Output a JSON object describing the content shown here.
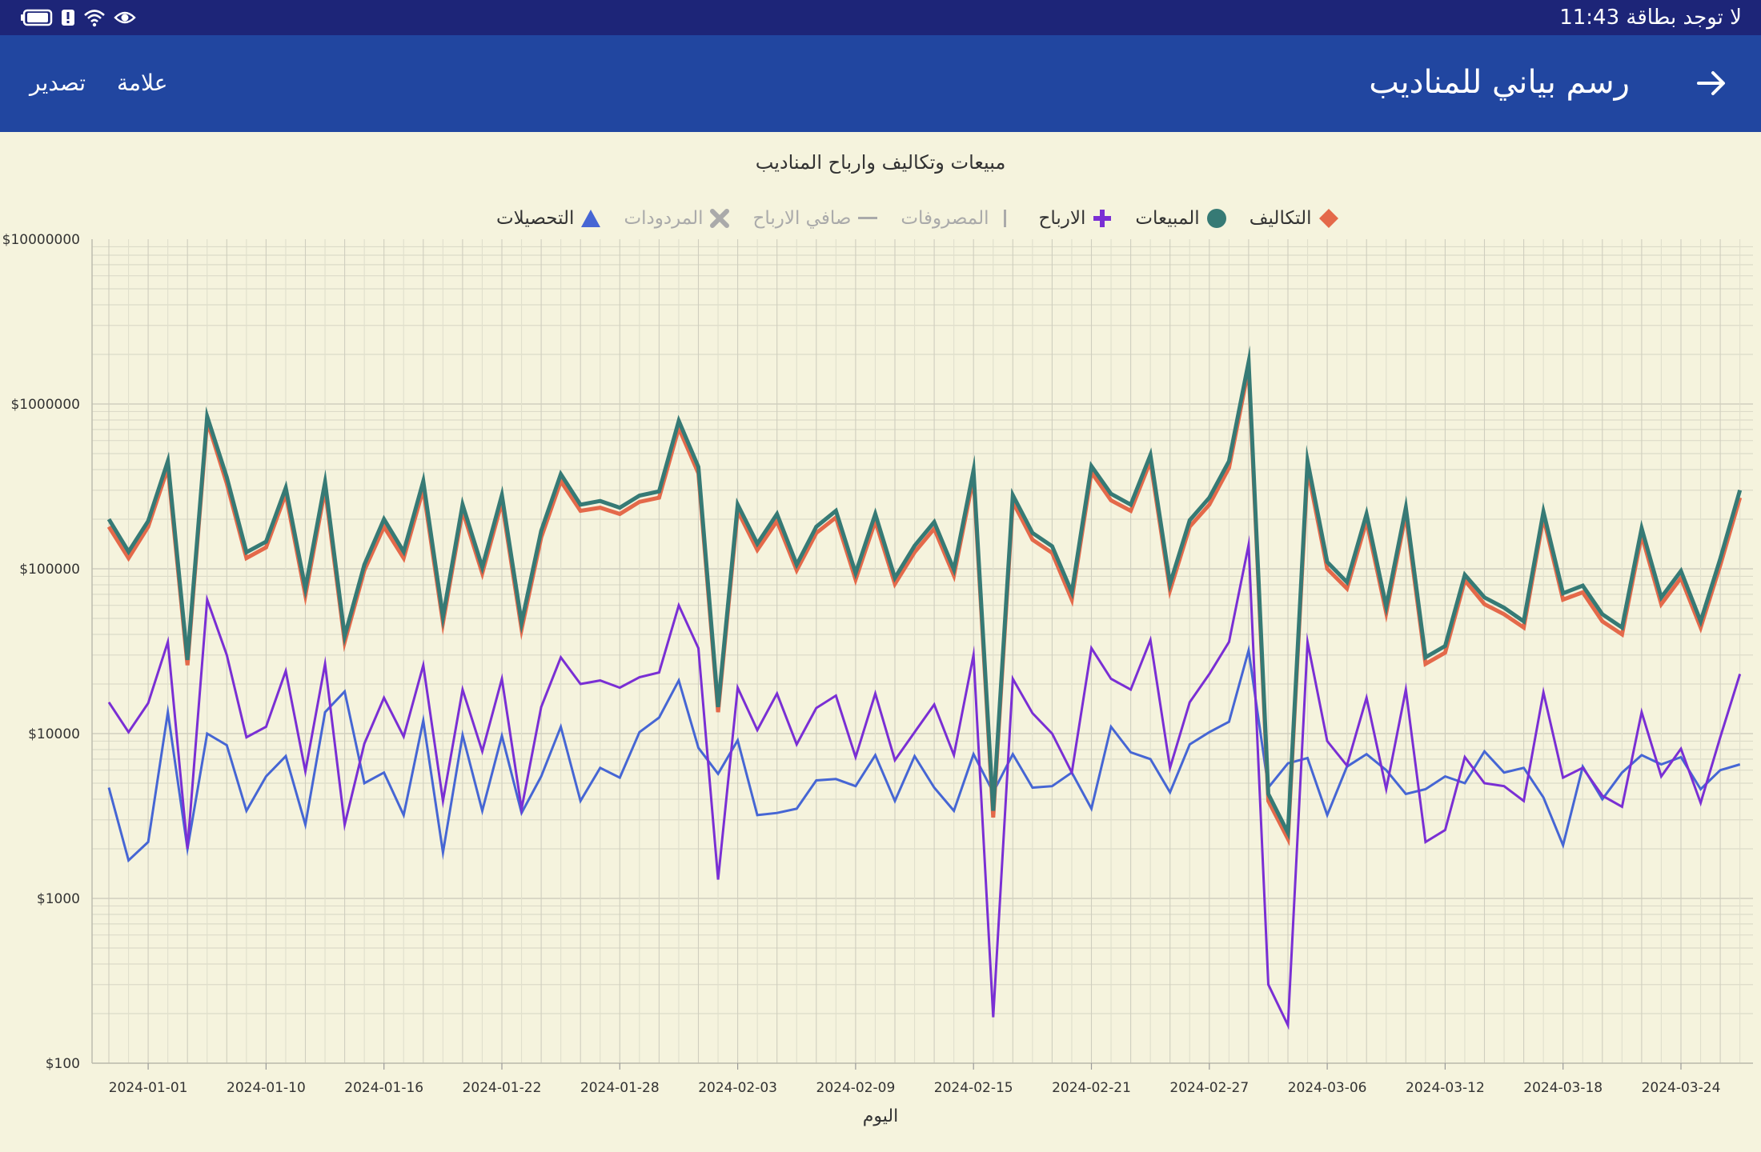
{
  "status_bar": {
    "time": "11:43",
    "carrier": "لا توجد بطاقة"
  },
  "app_bar": {
    "title": "رسم بياني للمناديب",
    "mark_label": "علامة",
    "export_label": "تصدير"
  },
  "colors": {
    "status_bar": "#1d2578",
    "app_bar": "#2146a0",
    "background": "#f5f3dd",
    "sales": "#367a75",
    "costs": "#e4694a",
    "profits": "#7a2fd4",
    "collections": "#4666d4",
    "disabled": "#aaaaaa"
  },
  "chart_data": {
    "type": "line",
    "title": "مبيعات وتكاليف وارباح المناديب",
    "xlabel": "اليوم",
    "ylabel": "",
    "y_scale": "log",
    "ylim": [
      100,
      10000000
    ],
    "y_ticks": [
      {
        "value": 100,
        "label": "$100"
      },
      {
        "value": 1000,
        "label": "$1000"
      },
      {
        "value": 10000,
        "label": "$10000"
      },
      {
        "value": 100000,
        "label": "$100000"
      },
      {
        "value": 1000000,
        "label": "$1000000"
      },
      {
        "value": 10000000,
        "label": "$10000000"
      }
    ],
    "x_ticks": [
      {
        "index": 2,
        "label": "2024-01-01"
      },
      {
        "index": 8,
        "label": "2024-01-10"
      },
      {
        "index": 14,
        "label": "2024-01-16"
      },
      {
        "index": 20,
        "label": "2024-01-22"
      },
      {
        "index": 26,
        "label": "2024-01-28"
      },
      {
        "index": 32,
        "label": "2024-02-03"
      },
      {
        "index": 38,
        "label": "2024-02-09"
      },
      {
        "index": 44,
        "label": "2024-02-15"
      },
      {
        "index": 50,
        "label": "2024-02-21"
      },
      {
        "index": 56,
        "label": "2024-02-27"
      },
      {
        "index": 62,
        "label": "2024-03-06"
      },
      {
        "index": 68,
        "label": "2024-03-12"
      },
      {
        "index": 74,
        "label": "2024-03-18"
      },
      {
        "index": 80,
        "label": "2024-03-24"
      }
    ],
    "legend": {
      "position": "top-center",
      "items": [
        {
          "key": "collections",
          "name": "التحصيلات",
          "marker": "triangle",
          "enabled": true
        },
        {
          "key": "returns",
          "name": "المردودات",
          "marker": "cross",
          "enabled": false
        },
        {
          "key": "net_profit",
          "name": "صافي الارباح",
          "marker": "dash",
          "enabled": false
        },
        {
          "key": "expenses",
          "name": "المصروفات",
          "marker": "bar",
          "enabled": false
        },
        {
          "key": "profits",
          "name": "الارباح",
          "marker": "plus",
          "enabled": true
        },
        {
          "key": "sales",
          "name": "المبيعات",
          "marker": "circle",
          "enabled": true
        },
        {
          "key": "costs",
          "name": "التكاليف",
          "marker": "diamond",
          "enabled": true
        }
      ]
    },
    "series": [
      {
        "key": "costs",
        "name": "التكاليف",
        "values": [
          180000,
          116000,
          180000,
          410000,
          26000,
          790000,
          330000,
          116000,
          135000,
          285000,
          69000,
          305000,
          36000,
          98000,
          180000,
          116000,
          305000,
          47000,
          225000,
          94000,
          255000,
          43000,
          155000,
          340000,
          225000,
          235000,
          215000,
          255000,
          270000,
          715000,
          380000,
          13500,
          225000,
          130000,
          195000,
          98000,
          165000,
          205000,
          86000,
          195000,
          81000,
          126000,
          175000,
          91000,
          360000,
          3100,
          255000,
          150000,
          125000,
          65000,
          385000,
          260000,
          225000,
          450000,
          74000,
          180000,
          245000,
          410000,
          1650000,
          3900,
          2300,
          405000,
          100000,
          76000,
          195000,
          54000,
          215000,
          26500,
          31000,
          85000,
          61000,
          53000,
          44000,
          205000,
          65000,
          72000,
          48000,
          40000,
          160000,
          61000,
          88000,
          44000,
          105000,
          270000
        ]
      },
      {
        "key": "sales",
        "name": "المبيعات",
        "values": [
          200000,
          127000,
          195000,
          450000,
          28000,
          840000,
          360000,
          126000,
          146000,
          310000,
          76000,
          335000,
          39000,
          106000,
          200000,
          127000,
          340000,
          51000,
          245000,
          102000,
          280000,
          47000,
          170000,
          375000,
          245000,
          258000,
          235000,
          278000,
          295000,
          790000,
          415000,
          14500,
          245000,
          142000,
          215000,
          106000,
          180000,
          225000,
          94000,
          215000,
          88000,
          138000,
          192000,
          99000,
          395000,
          3400,
          280000,
          165000,
          137000,
          72000,
          420000,
          285000,
          245000,
          490000,
          81000,
          197000,
          270000,
          450000,
          1800000,
          4300,
          2500,
          450000,
          110000,
          83000,
          215000,
          59000,
          235000,
          29000,
          34000,
          92000,
          67000,
          58000,
          48000,
          222000,
          71000,
          79000,
          53000,
          44000,
          176000,
          67000,
          97000,
          48000,
          115000,
          300000
        ]
      },
      {
        "key": "profits",
        "name": "الارباح",
        "values": [
          15500,
          10200,
          15300,
          36000,
          2000,
          65000,
          30000,
          9500,
          11000,
          24000,
          5900,
          26500,
          2800,
          8700,
          16500,
          9600,
          26000,
          3900,
          18500,
          7800,
          21500,
          3500,
          14500,
          29000,
          20000,
          21000,
          19000,
          22000,
          23500,
          60000,
          33000,
          1300,
          19000,
          10500,
          17500,
          8600,
          14300,
          17000,
          7200,
          17500,
          6900,
          10200,
          15000,
          7400,
          30000,
          190,
          21500,
          13300,
          10000,
          5800,
          33000,
          21500,
          18500,
          37000,
          6200,
          15500,
          23000,
          36000,
          140000,
          300,
          170,
          36000,
          9000,
          6400,
          16500,
          4600,
          18500,
          2200,
          2600,
          7200,
          5000,
          4800,
          3900,
          17800,
          5400,
          6200,
          4200,
          3600,
          13500,
          5500,
          8100,
          3800,
          9500,
          23000
        ]
      },
      {
        "key": "collections",
        "name": "التحصيلات",
        "values": [
          4700,
          1700,
          2200,
          13500,
          2000,
          10000,
          8500,
          3400,
          5500,
          7300,
          2800,
          13500,
          18000,
          5000,
          5800,
          3200,
          12000,
          1900,
          9800,
          3400,
          9700,
          3300,
          5500,
          11000,
          3900,
          6200,
          5400,
          10200,
          12500,
          21000,
          8200,
          5700,
          9100,
          3200,
          3300,
          3500,
          5200,
          5300,
          4800,
          7400,
          3900,
          7300,
          4700,
          3400,
          7500,
          4400,
          7500,
          4700,
          4800,
          5800,
          3500,
          11000,
          7700,
          7000,
          4400,
          8600,
          10200,
          11800,
          32000,
          4700,
          6600,
          7100,
          3200,
          6300,
          7500,
          6000,
          4300,
          4600,
          5500,
          5000,
          7800,
          5800,
          6200,
          4100,
          2100,
          6300,
          4000,
          5800,
          7400,
          6500,
          7200,
          4600,
          6000,
          6500
        ]
      }
    ]
  }
}
